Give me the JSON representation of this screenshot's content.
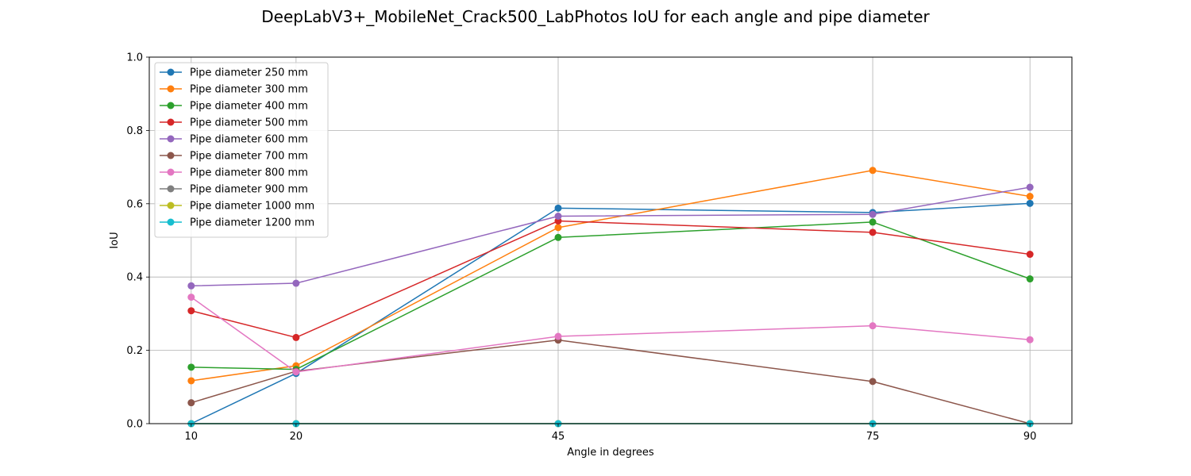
{
  "chart_data": {
    "type": "line",
    "title": "DeepLabV3+_MobileNet_Crack500_LabPhotos IoU for each angle and pipe diameter",
    "xlabel": "Angle in degrees",
    "ylabel": "IoU",
    "x": [
      10,
      20,
      45,
      75,
      90
    ],
    "xlim": [
      6,
      94
    ],
    "ylim": [
      0,
      1.0
    ],
    "yticks": [
      0.0,
      0.2,
      0.4,
      0.6,
      0.8,
      1.0
    ],
    "ytick_labels": [
      "0.0",
      "0.2",
      "0.4",
      "0.6",
      "0.8",
      "1.0"
    ],
    "xtick_labels": [
      "10",
      "20",
      "45",
      "75",
      "90"
    ],
    "grid": true,
    "legend_position": "top-left",
    "series": [
      {
        "name": "Pipe diameter 250 mm",
        "color": "#1f77b4",
        "values": [
          0.0,
          0.137,
          0.588,
          0.576,
          0.601
        ]
      },
      {
        "name": "Pipe diameter 300 mm",
        "color": "#ff7f0e",
        "values": [
          0.117,
          0.158,
          0.535,
          0.691,
          0.62
        ]
      },
      {
        "name": "Pipe diameter 400 mm",
        "color": "#2ca02c",
        "values": [
          0.154,
          0.148,
          0.508,
          0.55,
          0.395
        ]
      },
      {
        "name": "Pipe diameter 500 mm",
        "color": "#d62728",
        "values": [
          0.308,
          0.235,
          0.553,
          0.522,
          0.462
        ]
      },
      {
        "name": "Pipe diameter 600 mm",
        "color": "#9467bd",
        "values": [
          0.376,
          0.383,
          0.566,
          0.571,
          0.645
        ]
      },
      {
        "name": "Pipe diameter 700 mm",
        "color": "#8c564b",
        "values": [
          0.057,
          0.143,
          0.228,
          0.115,
          0.0
        ]
      },
      {
        "name": "Pipe diameter 800 mm",
        "color": "#e377c2",
        "values": [
          0.345,
          0.141,
          0.238,
          0.267,
          0.229
        ]
      },
      {
        "name": "Pipe diameter 900 mm",
        "color": "#7f7f7f",
        "values": [
          0.0,
          0.0,
          0.0,
          0.0,
          0.0
        ]
      },
      {
        "name": "Pipe diameter 1000 mm",
        "color": "#bcbd22",
        "values": [
          0.0,
          0.0,
          0.0,
          0.0,
          0.0
        ]
      },
      {
        "name": "Pipe diameter 1200 mm",
        "color": "#17becf",
        "values": [
          0.0,
          0.0,
          0.0,
          0.0,
          0.0
        ]
      }
    ]
  }
}
